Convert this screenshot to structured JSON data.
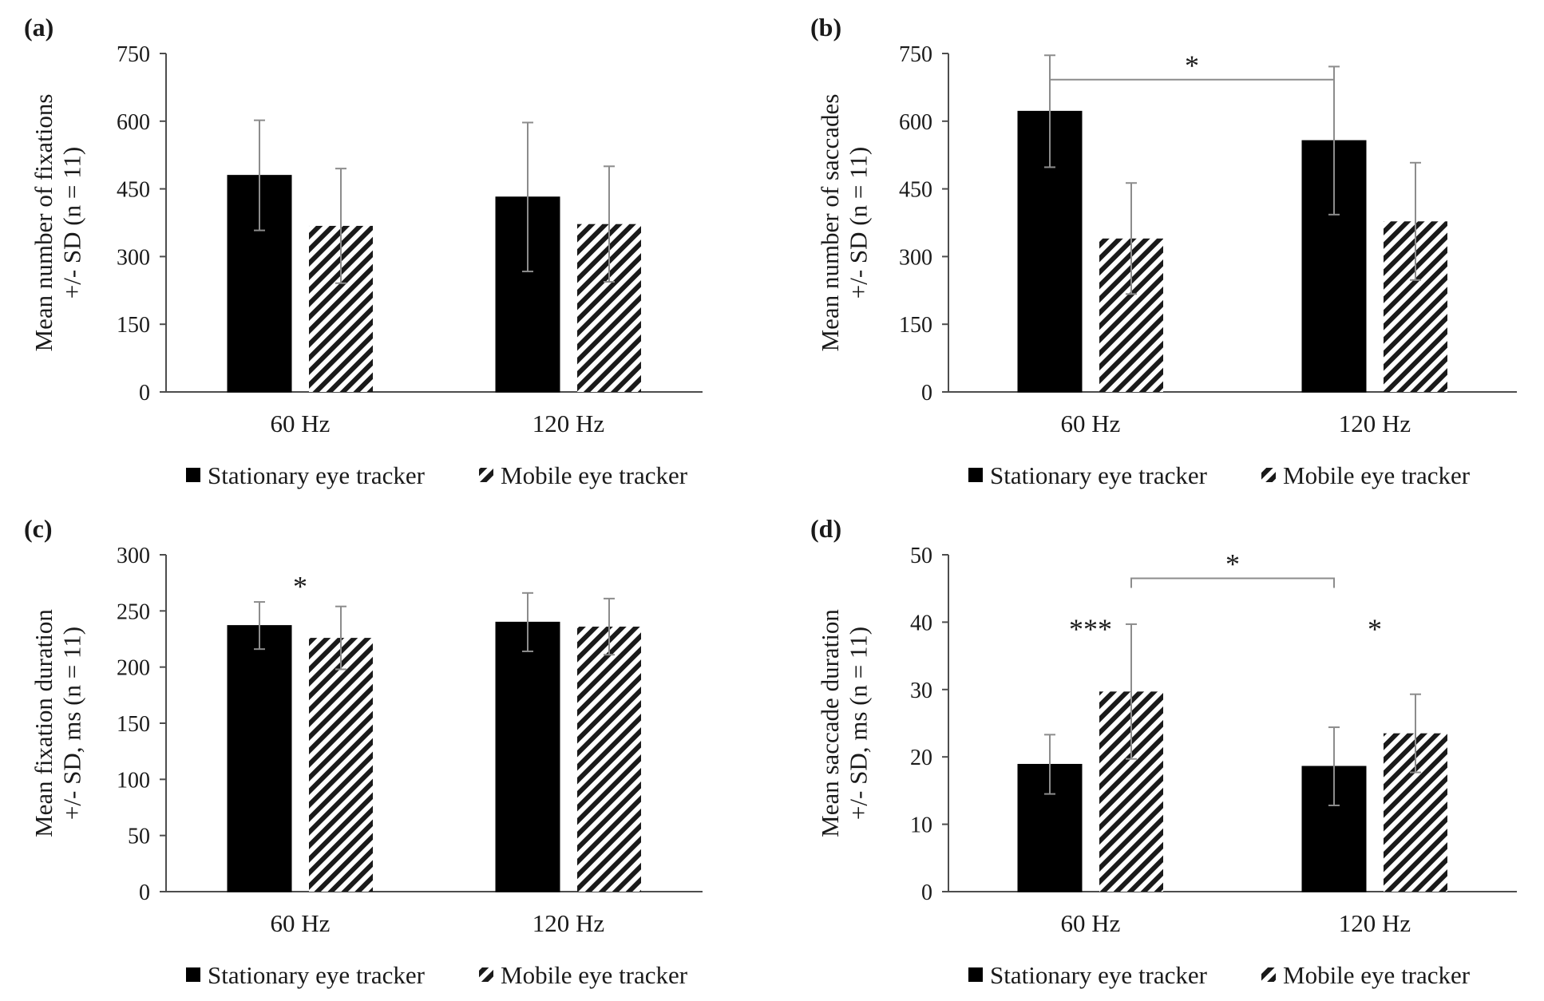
{
  "chart_data": [
    {
      "type": "bar",
      "panel_label": "(a)",
      "ylabel_lines": [
        "Mean number of fixations",
        "+/- SD (n = 11)"
      ],
      "ylim": [
        0,
        750
      ],
      "yticks": [
        0,
        150,
        300,
        450,
        600,
        750
      ],
      "ytick_labels": [
        "0",
        "150",
        "300",
        "450",
        "600",
        "750"
      ],
      "categories": [
        "60 Hz",
        "120 Hz"
      ],
      "series": [
        {
          "name": "Stationary eye tracker",
          "pattern": "solid",
          "values": [
            480,
            432
          ],
          "sd": [
            122,
            165
          ]
        },
        {
          "name": "Mobile eye tracker",
          "pattern": "hatched",
          "values": [
            368,
            372
          ],
          "sd": [
            127,
            128
          ]
        }
      ],
      "legend": [
        "Stationary eye tracker",
        "Mobile eye tracker"
      ],
      "legend_position": "bottom",
      "grid": false,
      "annotations": []
    },
    {
      "type": "bar",
      "panel_label": "(b)",
      "ylabel_lines": [
        "Mean number of saccades",
        "+/- SD (n = 11)"
      ],
      "ylim": [
        0,
        750
      ],
      "yticks": [
        0,
        150,
        300,
        450,
        600,
        750
      ],
      "ytick_labels": [
        "0",
        "150",
        "300",
        "450",
        "600",
        "750"
      ],
      "categories": [
        "60 Hz",
        "120 Hz"
      ],
      "series": [
        {
          "name": "Stationary eye tracker",
          "pattern": "solid",
          "values": [
            622,
            557
          ],
          "sd": [
            124,
            164
          ]
        },
        {
          "name": "Mobile eye tracker",
          "pattern": "hatched",
          "values": [
            340,
            378
          ],
          "sd": [
            123,
            130
          ]
        }
      ],
      "legend": [
        "Stationary eye tracker",
        "Mobile eye tracker"
      ],
      "legend_position": "bottom",
      "grid": false,
      "annotations": [
        {
          "text": "*",
          "kind": "bracket",
          "from": {
            "category": 0,
            "series": 0
          },
          "to": {
            "category": 1,
            "series": 0
          },
          "level": 692
        }
      ]
    },
    {
      "type": "bar",
      "panel_label": "(c)",
      "ylabel_lines": [
        "Mean fixation duration",
        "+/- SD, ms (n = 11)"
      ],
      "ylim": [
        0,
        300
      ],
      "yticks": [
        0,
        50,
        100,
        150,
        200,
        250,
        300
      ],
      "ytick_labels": [
        "0",
        "50",
        "100",
        "150",
        "200",
        "250",
        "300"
      ],
      "categories": [
        "60 Hz",
        "120 Hz"
      ],
      "series": [
        {
          "name": "Stationary eye tracker",
          "pattern": "solid",
          "values": [
            237,
            240
          ],
          "sd": [
            21,
            26
          ]
        },
        {
          "name": "Mobile eye tracker",
          "pattern": "hatched",
          "values": [
            226,
            236
          ],
          "sd": [
            28,
            25
          ]
        }
      ],
      "legend": [
        "Stationary eye tracker",
        "Mobile eye tracker"
      ],
      "legend_position": "bottom",
      "grid": false,
      "annotations": [
        {
          "text": "*",
          "kind": "star",
          "category": 0,
          "level": 272
        }
      ]
    },
    {
      "type": "bar",
      "panel_label": "(d)",
      "ylabel_lines": [
        "Mean saccade duration",
        "+/- SD, ms (n = 11)"
      ],
      "ylim": [
        0,
        50
      ],
      "yticks": [
        0,
        10,
        20,
        30,
        40,
        50
      ],
      "ytick_labels": [
        "0",
        "10",
        "20",
        "30",
        "40",
        "50"
      ],
      "categories": [
        "60 Hz",
        "120 Hz"
      ],
      "series": [
        {
          "name": "Stationary eye tracker",
          "pattern": "solid",
          "values": [
            18.9,
            18.6
          ],
          "sd": [
            4.4,
            5.8
          ]
        },
        {
          "name": "Mobile eye tracker",
          "pattern": "hatched",
          "values": [
            29.7,
            23.5
          ],
          "sd": [
            10,
            5.8
          ]
        }
      ],
      "legend": [
        "Stationary eye tracker",
        "Mobile eye tracker"
      ],
      "legend_position": "bottom",
      "grid": false,
      "annotations": [
        {
          "text": "*",
          "kind": "bracket",
          "from": {
            "category": 0,
            "series": 1
          },
          "to": {
            "category": 1,
            "series": 0
          },
          "level": 46.5
        },
        {
          "text": "***",
          "kind": "star",
          "category": 0,
          "level": 39
        },
        {
          "text": "*",
          "kind": "star",
          "category": 1,
          "level": 39
        }
      ]
    }
  ],
  "colors": {
    "stationary": "#000000",
    "mobile_stripe": "#1a1a1a",
    "axis": "#4d4d4d",
    "error_bar": "#8c8c8c",
    "bracket": "#8c8c8c"
  }
}
